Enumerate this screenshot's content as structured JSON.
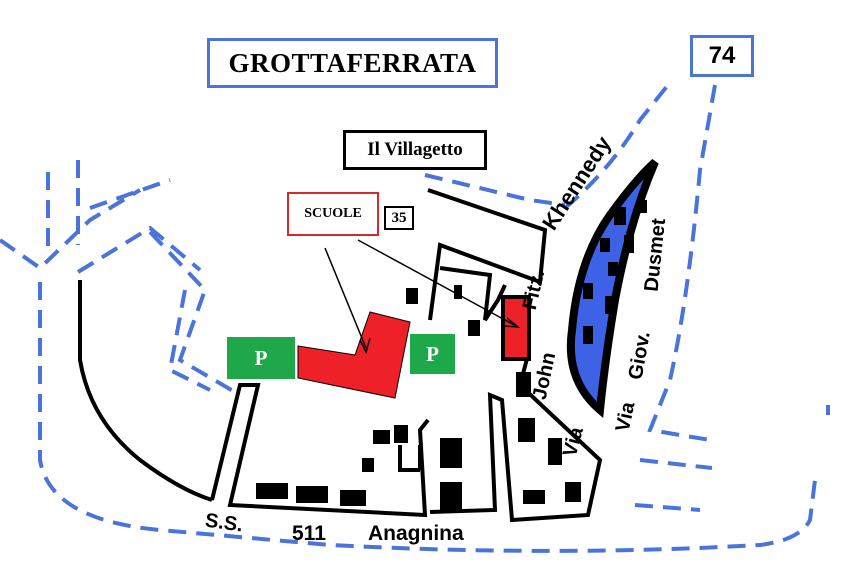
{
  "map": {
    "title": "GROTTAFERRATA",
    "road_number": "74",
    "villagetto": "Il Villagetto",
    "schools_label": "SCUOLE",
    "schools_number": "35",
    "parking_1": "P",
    "parking_2": "P",
    "roads": {
      "ss": "S.S.",
      "ss_number": "511",
      "ss_name": "Anagnina",
      "khennedy": "Khennedy",
      "fitz": "Fitz.",
      "john": "John",
      "via_1": "Via",
      "dusmet": "Dusmet",
      "giov": "Giov.",
      "via_2": "Via"
    }
  },
  "colors": {
    "road_dashed": "#4a74d9",
    "school": "#ee2028",
    "parking": "#1ea84a",
    "lake": "#3e62e6",
    "building": "#000000"
  }
}
